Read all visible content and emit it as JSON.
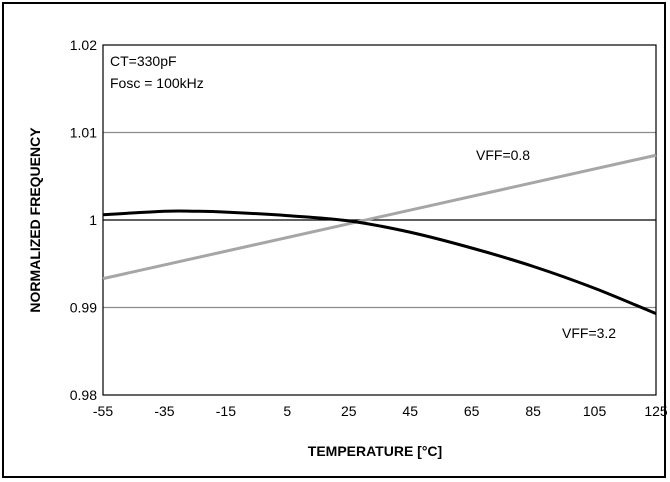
{
  "chart_data": {
    "type": "line",
    "xlabel": "TEMPERATURE [°C]",
    "ylabel": "NORMALIZED FREQUENCY",
    "xlim": [
      -55,
      125
    ],
    "ylim": [
      0.98,
      1.02
    ],
    "x_ticks": [
      "-55",
      "-35",
      "-15",
      "5",
      "25",
      "45",
      "65",
      "85",
      "105",
      "125"
    ],
    "y_ticks": [
      "0.98",
      "0.99",
      "1",
      "1.01",
      "1.02"
    ],
    "y_tick_values": [
      0.98,
      0.99,
      1.0,
      1.01,
      1.02
    ],
    "grid": "horizontal",
    "annotations": {
      "line1": "CT=330pF",
      "line2": "Fosc = 100kHz"
    },
    "series": [
      {
        "name": "VFF=0.8",
        "color": "#a6a6a6",
        "x": [
          -55,
          125
        ],
        "y": [
          0.9933,
          1.0074
        ]
      },
      {
        "name": "VFF=3.2",
        "color": "#000000",
        "x": [
          -55,
          -35,
          -25,
          -15,
          5,
          25,
          45,
          65,
          85,
          105,
          125
        ],
        "y": [
          1.0006,
          1.001,
          1.001,
          1.0009,
          1.0005,
          0.9999,
          0.9986,
          0.9968,
          0.9947,
          0.9922,
          0.9893
        ]
      }
    ]
  }
}
